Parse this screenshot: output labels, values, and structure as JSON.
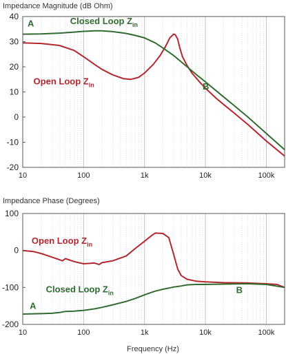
{
  "colors": {
    "open_loop": "#b3262e",
    "closed_loop": "#2f6b2f",
    "axes": "#555555",
    "grid": "#bbbbbb"
  },
  "chart_data": [
    {
      "type": "line",
      "title": "Impedance Magnitude (dB Ohm)",
      "xscale": "log",
      "xlim": [
        10,
        200000
      ],
      "ylim": [
        -20,
        40
      ],
      "yticks": [
        40,
        30,
        20,
        10,
        0,
        -10,
        -20
      ],
      "xticks": [
        10,
        100,
        1000,
        10000,
        100000
      ],
      "xtick_labels": [
        "10",
        "100",
        "1k",
        "10k",
        "100k"
      ],
      "grid": "vertical",
      "annotations": [
        {
          "text": "A",
          "x": 12,
          "y": 36,
          "color": "closed_loop"
        },
        {
          "text": "Closed Loop Z",
          "sub": "in",
          "x": 60,
          "y": 37,
          "color": "closed_loop"
        },
        {
          "text": "Open Loop Z",
          "sub": "in",
          "x": 15,
          "y": 13,
          "color": "open_loop"
        },
        {
          "text": "B",
          "x": 9000,
          "y": 11,
          "color": "closed_loop"
        }
      ],
      "series": [
        {
          "name": "Open Loop Zin",
          "color": "open_loop",
          "x": [
            10,
            20,
            40,
            70,
            100,
            150,
            200,
            300,
            450,
            600,
            800,
            1000,
            1400,
            1800,
            2200,
            2600,
            3000,
            3200,
            3500,
            3800,
            4200,
            5000,
            6000,
            8000,
            10000,
            15000,
            20000,
            30000,
            50000,
            100000,
            200000
          ],
          "y": [
            29.5,
            29.3,
            28.5,
            26.5,
            24,
            21,
            19,
            16.8,
            15.3,
            15,
            15.8,
            17.5,
            21,
            24.5,
            28,
            31.5,
            33,
            32.8,
            31,
            27.5,
            24,
            20.5,
            17.5,
            14,
            11.5,
            7.5,
            5,
            1.5,
            -3,
            -9.5,
            -15.5
          ]
        },
        {
          "name": "Closed Loop Zin",
          "color": "closed_loop",
          "x": [
            10,
            20,
            40,
            70,
            100,
            150,
            200,
            300,
            500,
            700,
            1000,
            1500,
            2000,
            3000,
            5000,
            7000,
            10000,
            15000,
            20000,
            30000,
            50000,
            100000,
            200000
          ],
          "y": [
            33,
            33.1,
            33.4,
            33.8,
            34.1,
            34.3,
            34.3,
            34,
            33.3,
            32.5,
            31.5,
            29.5,
            27.5,
            24.5,
            20,
            17,
            14,
            10.5,
            8,
            4.5,
            0,
            -6.5,
            -13
          ]
        }
      ]
    },
    {
      "type": "line",
      "title": "Impedance Phase (Degrees)",
      "xlabel": "Frequency (Hz)",
      "xscale": "log",
      "xlim": [
        10,
        200000
      ],
      "ylim": [
        -200,
        100
      ],
      "yticks": [
        100,
        0,
        -100,
        -200
      ],
      "xticks": [
        10,
        100,
        1000,
        10000,
        100000
      ],
      "xtick_labels": [
        "10",
        "100",
        "1k",
        "10k",
        "100k"
      ],
      "grid": "vertical",
      "annotations": [
        {
          "text": "Open Loop Z",
          "sub": "in",
          "x": 14,
          "y": 18,
          "color": "open_loop"
        },
        {
          "text": "Closed Loop Z",
          "sub": "in",
          "x": 24,
          "y": -113,
          "color": "closed_loop"
        },
        {
          "text": "A",
          "x": 13,
          "y": -158,
          "color": "closed_loop"
        },
        {
          "text": "B",
          "x": 32000,
          "y": -115,
          "color": "closed_loop"
        }
      ],
      "series": [
        {
          "name": "Open Loop Zin",
          "color": "open_loop",
          "x": [
            10,
            15,
            20,
            30,
            40,
            45,
            50,
            70,
            100,
            150,
            180,
            200,
            300,
            500,
            700,
            1000,
            1300,
            1500,
            2000,
            2500,
            3000,
            3500,
            4000,
            5000,
            7000,
            10000,
            20000,
            50000,
            100000,
            150000,
            200000
          ],
          "y": [
            0,
            -3,
            -8,
            -18,
            -25,
            -28,
            -22,
            -30,
            -36,
            -34,
            -38,
            -33,
            -28,
            -15,
            5,
            25,
            40,
            47,
            46,
            35,
            -10,
            -50,
            -68,
            -78,
            -83,
            -85,
            -87,
            -88,
            -90,
            -92,
            -100
          ]
        },
        {
          "name": "Closed Loop Zin",
          "color": "closed_loop",
          "x": [
            10,
            20,
            30,
            40,
            50,
            70,
            100,
            150,
            200,
            300,
            500,
            700,
            1000,
            1500,
            2000,
            3000,
            4000,
            5000,
            7000,
            10000,
            20000,
            50000,
            100000,
            200000
          ],
          "y": [
            -172,
            -171,
            -170,
            -168,
            -165,
            -164,
            -162,
            -158,
            -154,
            -147,
            -138,
            -130,
            -120,
            -110,
            -105,
            -99,
            -96,
            -93,
            -92,
            -92,
            -91,
            -90,
            -92,
            -100
          ]
        }
      ]
    }
  ]
}
